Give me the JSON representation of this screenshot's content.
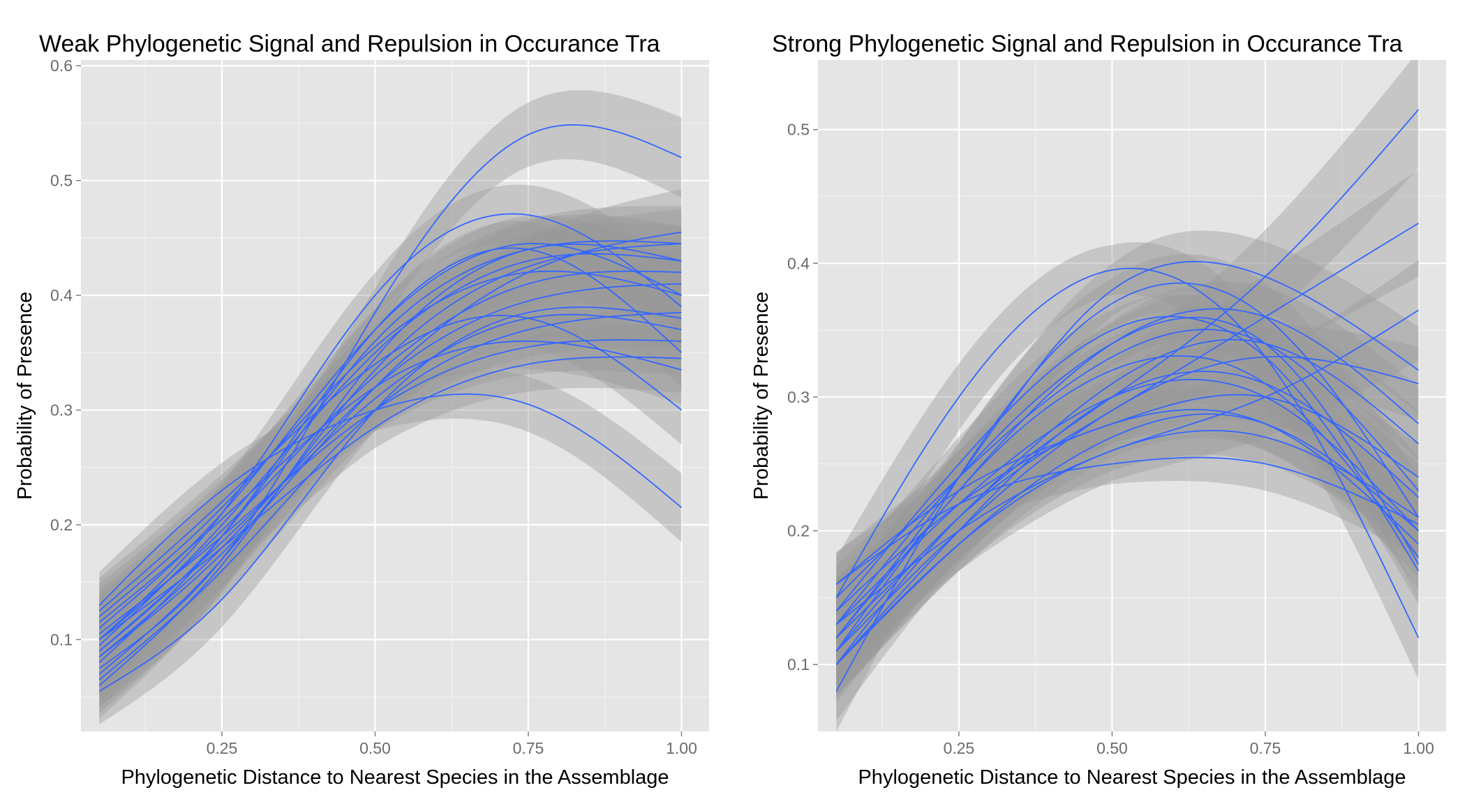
{
  "chart_data": [
    {
      "type": "line",
      "title": "Weak Phylogenetic Signal and Repulsion in Occurance Tra",
      "xlabel": "Phylogenetic Distance to Nearest Species in the Assemblage",
      "ylabel": "Probability of Presence",
      "xlim": [
        0.02,
        1.045
      ],
      "ylim": [
        0.02,
        0.605
      ],
      "xticks": [
        0.25,
        0.5,
        0.75,
        1.0
      ],
      "xtick_labels": [
        "0.25",
        "0.50",
        "0.75",
        "1.00"
      ],
      "yticks": [
        0.1,
        0.2,
        0.3,
        0.4,
        0.5,
        0.6
      ],
      "ytick_labels": [
        "0.1",
        "0.2",
        "0.3",
        "0.4",
        "0.5",
        "0.6"
      ],
      "grid": true,
      "x": [
        0.05,
        0.25,
        0.5,
        0.75,
        1.0
      ],
      "series": [
        {
          "values": [
            0.075,
            0.17,
            0.385,
            0.54,
            0.52
          ],
          "ci": 0.028
        },
        {
          "values": [
            0.1,
            0.21,
            0.4,
            0.47,
            0.39
          ],
          "ci": 0.026
        },
        {
          "values": [
            0.11,
            0.21,
            0.37,
            0.445,
            0.4
          ],
          "ci": 0.024
        },
        {
          "values": [
            0.09,
            0.19,
            0.36,
            0.44,
            0.445
          ],
          "ci": 0.026
        },
        {
          "values": [
            0.085,
            0.175,
            0.32,
            0.42,
            0.455
          ],
          "ci": 0.03
        },
        {
          "values": [
            0.125,
            0.22,
            0.34,
            0.38,
            0.3
          ],
          "ci": 0.024
        },
        {
          "values": [
            0.13,
            0.23,
            0.3,
            0.305,
            0.215
          ],
          "ci": 0.024
        },
        {
          "values": [
            0.055,
            0.135,
            0.3,
            0.385,
            0.38
          ],
          "ci": 0.024
        },
        {
          "values": [
            0.065,
            0.16,
            0.3,
            0.37,
            0.385
          ],
          "ci": 0.024
        },
        {
          "values": [
            0.095,
            0.2,
            0.35,
            0.43,
            0.43
          ],
          "ci": 0.024
        },
        {
          "values": [
            0.08,
            0.19,
            0.37,
            0.44,
            0.35
          ],
          "ci": 0.024
        },
        {
          "values": [
            0.1,
            0.195,
            0.33,
            0.41,
            0.42
          ],
          "ci": 0.024
        },
        {
          "values": [
            0.085,
            0.18,
            0.32,
            0.395,
            0.41
          ],
          "ci": 0.024
        },
        {
          "values": [
            0.12,
            0.215,
            0.355,
            0.42,
            0.4
          ],
          "ci": 0.024
        },
        {
          "values": [
            0.07,
            0.17,
            0.335,
            0.425,
            0.445
          ],
          "ci": 0.024
        },
        {
          "values": [
            0.105,
            0.19,
            0.3,
            0.355,
            0.36
          ],
          "ci": 0.024
        },
        {
          "values": [
            0.09,
            0.185,
            0.31,
            0.38,
            0.37
          ],
          "ci": 0.024
        },
        {
          "values": [
            0.115,
            0.205,
            0.32,
            0.36,
            0.335
          ],
          "ci": 0.024
        },
        {
          "values": [
            0.06,
            0.165,
            0.345,
            0.44,
            0.43
          ],
          "ci": 0.024
        },
        {
          "values": [
            0.1,
            0.18,
            0.285,
            0.34,
            0.345
          ],
          "ci": 0.024
        }
      ]
    },
    {
      "type": "line",
      "title": "Strong Phylogenetic Signal and Repulsion in Occurance Tra",
      "xlabel": "Phylogenetic Distance to Nearest Species in the Assemblage",
      "ylabel": "Probability of Presence",
      "xlim": [
        0.02,
        1.045
      ],
      "ylim": [
        0.05,
        0.552
      ],
      "xticks": [
        0.25,
        0.5,
        0.75,
        1.0
      ],
      "xtick_labels": [
        "0.25",
        "0.50",
        "0.75",
        "1.00"
      ],
      "yticks": [
        0.1,
        0.2,
        0.3,
        0.4,
        0.5
      ],
      "ytick_labels": [
        "0.1",
        "0.2",
        "0.3",
        "0.4",
        "0.5"
      ],
      "grid": true,
      "x": [
        0.05,
        0.25,
        0.5,
        0.75,
        1.0
      ],
      "series": [
        {
          "values": [
            0.1,
            0.21,
            0.3,
            0.39,
            0.515
          ],
          "ci": 0.035
        },
        {
          "values": [
            0.11,
            0.21,
            0.29,
            0.36,
            0.43
          ],
          "ci": 0.032
        },
        {
          "values": [
            0.13,
            0.2,
            0.26,
            0.3,
            0.365
          ],
          "ci": 0.03
        },
        {
          "values": [
            0.15,
            0.3,
            0.395,
            0.33,
            0.12
          ],
          "ci": 0.025
        },
        {
          "values": [
            0.12,
            0.24,
            0.38,
            0.39,
            0.32
          ],
          "ci": 0.026
        },
        {
          "values": [
            0.08,
            0.24,
            0.37,
            0.36,
            0.21
          ],
          "ci": 0.025
        },
        {
          "values": [
            0.16,
            0.22,
            0.25,
            0.25,
            0.205
          ],
          "ci": 0.02
        },
        {
          "values": [
            0.14,
            0.22,
            0.28,
            0.28,
            0.19
          ],
          "ci": 0.02
        },
        {
          "values": [
            0.1,
            0.19,
            0.27,
            0.28,
            0.2
          ],
          "ci": 0.02
        },
        {
          "values": [
            0.13,
            0.22,
            0.3,
            0.3,
            0.2
          ],
          "ci": 0.02
        },
        {
          "values": [
            0.11,
            0.23,
            0.32,
            0.31,
            0.18
          ],
          "ci": 0.02
        },
        {
          "values": [
            0.15,
            0.24,
            0.33,
            0.34,
            0.23
          ],
          "ci": 0.02
        },
        {
          "values": [
            0.12,
            0.21,
            0.31,
            0.34,
            0.265
          ],
          "ci": 0.02
        },
        {
          "values": [
            0.1,
            0.2,
            0.3,
            0.31,
            0.225
          ],
          "ci": 0.02
        },
        {
          "values": [
            0.14,
            0.25,
            0.35,
            0.33,
            0.17
          ],
          "ci": 0.02
        },
        {
          "values": [
            0.12,
            0.23,
            0.34,
            0.36,
            0.28
          ],
          "ci": 0.022
        },
        {
          "values": [
            0.16,
            0.23,
            0.28,
            0.3,
            0.24
          ],
          "ci": 0.02
        },
        {
          "values": [
            0.11,
            0.2,
            0.29,
            0.33,
            0.31
          ],
          "ci": 0.022
        },
        {
          "values": [
            0.13,
            0.24,
            0.34,
            0.34,
            0.175
          ],
          "ci": 0.02
        },
        {
          "values": [
            0.1,
            0.19,
            0.26,
            0.27,
            0.21
          ],
          "ci": 0.02
        }
      ]
    }
  ]
}
